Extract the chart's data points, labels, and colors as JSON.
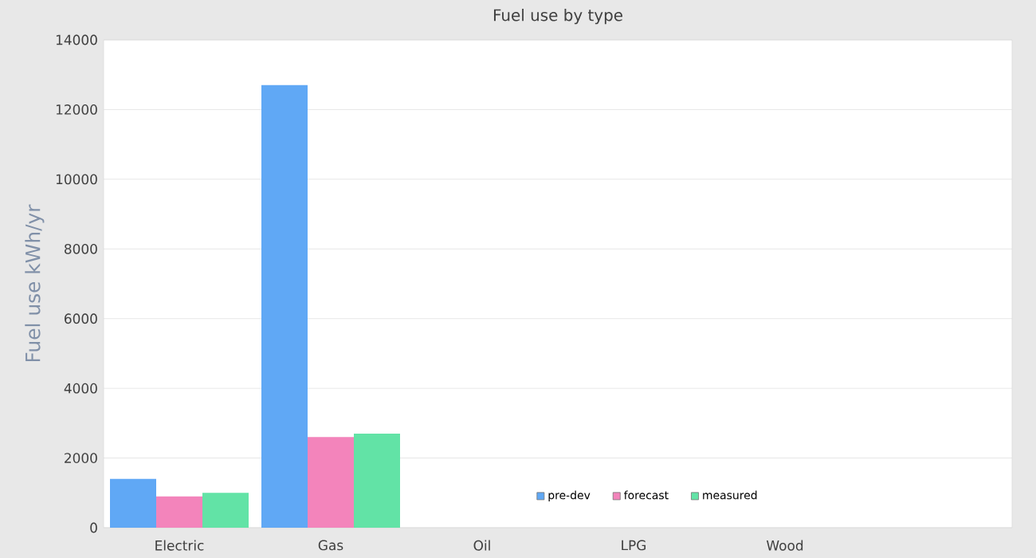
{
  "chart_data": {
    "type": "bar",
    "title": "Fuel use by type",
    "ylabel": "Fuel use  kWh/yr",
    "categories": [
      "Electric",
      "Gas",
      "Oil",
      "LPG",
      "Wood",
      null
    ],
    "series": [
      {
        "name": "pre-dev",
        "color": "#60a8f5",
        "values": [
          1400,
          12700,
          null,
          null,
          null,
          null
        ]
      },
      {
        "name": "forecast",
        "color": "#f384bb",
        "values": [
          900,
          2600,
          null,
          null,
          null,
          null
        ]
      },
      {
        "name": "measured",
        "color": "#62e3a6",
        "values": [
          1000,
          2700,
          null,
          null,
          null,
          null
        ]
      }
    ],
    "ylim": [
      0,
      14000
    ],
    "yticks": [
      0,
      2000,
      4000,
      6000,
      8000,
      10000,
      12000,
      14000
    ],
    "grid": "y",
    "legend": "bottom"
  }
}
